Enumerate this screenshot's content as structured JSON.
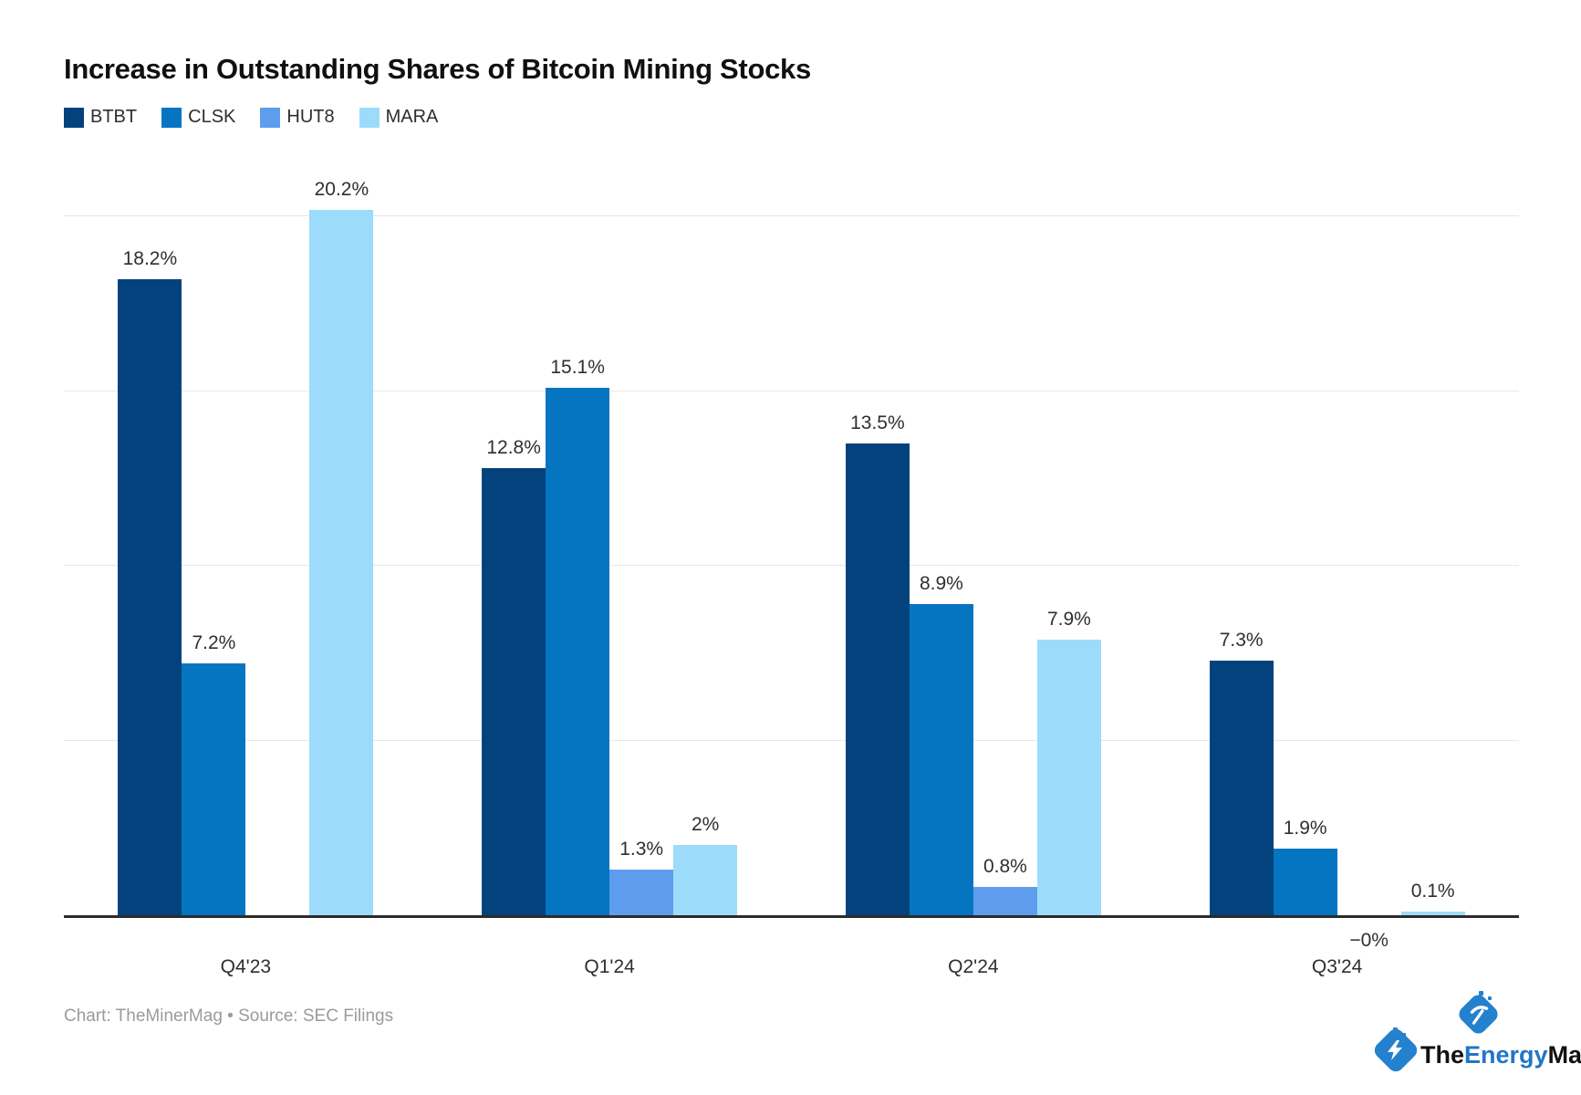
{
  "title": "Increase in Outstanding Shares of Bitcoin Mining Stocks",
  "footer": {
    "credit": "Chart: TheMinerMag • Source: SEC Filings"
  },
  "logo": {
    "brand_the": "The",
    "brand_energy": "Energy",
    "brand_mag": "Mag",
    "badge_color": "#2381cd",
    "energy_color": "#2176c7",
    "icons": [
      "pickaxe-icon",
      "lightning-bolt-icon"
    ]
  },
  "colors": {
    "grid": "#e7e7e7",
    "axis": "#2b2b2b",
    "label": "#2f2f2f"
  },
  "chart_data": {
    "type": "bar",
    "title": "Increase in Outstanding Shares of Bitcoin Mining Stocks",
    "xlabel": "",
    "ylabel": "",
    "ylim": [
      0,
      21
    ],
    "gridlines": [
      5,
      10,
      15,
      20
    ],
    "grid": "horizontal",
    "legend_position": "top-left",
    "y_tick_labels_shown": false,
    "categories": [
      "Q4'23",
      "Q1'24",
      "Q2'24",
      "Q3'24"
    ],
    "series": [
      {
        "name": "BTBT",
        "color": "#04427e",
        "values": [
          18.2,
          12.8,
          13.5,
          7.3
        ],
        "labels": [
          "18.2%",
          "12.8%",
          "13.5%",
          "7.3%"
        ]
      },
      {
        "name": "CLSK",
        "color": "#0575c2",
        "values": [
          7.2,
          15.1,
          8.9,
          1.9
        ],
        "labels": [
          "7.2%",
          "15.1%",
          "8.9%",
          "1.9%"
        ]
      },
      {
        "name": "HUT8",
        "color": "#5e9ded",
        "values": [
          null,
          1.3,
          0.8,
          -0.001
        ],
        "labels": [
          null,
          "1.3%",
          "0.8%",
          "−0%"
        ]
      },
      {
        "name": "MARA",
        "color": "#9cdcfa",
        "values": [
          20.2,
          2,
          7.9,
          0.1
        ],
        "labels": [
          "20.2%",
          "2%",
          "7.9%",
          "0.1%"
        ]
      }
    ]
  }
}
